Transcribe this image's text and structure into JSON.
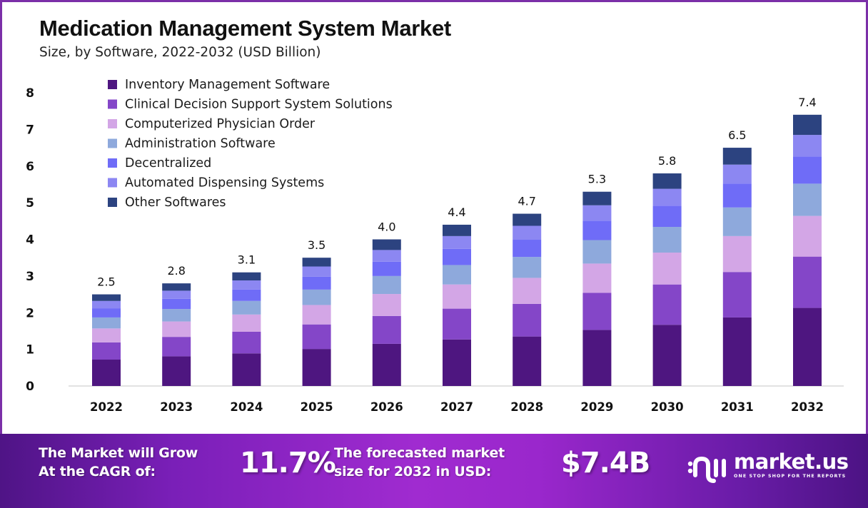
{
  "header": {
    "title": "Medication Management System Market",
    "subtitle": "Size, by Software, 2022-2032 (USD Billion)"
  },
  "chart_data": {
    "type": "bar",
    "stacked": true,
    "title": "Medication Management System Market",
    "subtitle": "Size, by Software, 2022-2032 (USD Billion)",
    "xlabel": "",
    "ylabel": "",
    "ylim": [
      0,
      8
    ],
    "yticks": [
      0,
      1,
      2,
      3,
      4,
      5,
      6,
      7,
      8
    ],
    "grid": false,
    "legend_position": "top-left",
    "categories": [
      "2022",
      "2023",
      "2024",
      "2025",
      "2026",
      "2027",
      "2028",
      "2029",
      "2030",
      "2031",
      "2032"
    ],
    "totals": [
      2.5,
      2.8,
      3.1,
      3.5,
      4.0,
      4.4,
      4.7,
      5.3,
      5.8,
      6.5,
      7.4
    ],
    "total_labels": [
      "2.5",
      "2.8",
      "3.1",
      "3.5",
      "4.0",
      "4.4",
      "4.7",
      "5.3",
      "5.8",
      "6.5",
      "7.4"
    ],
    "series": [
      {
        "name": "Inventory Management Software",
        "color": "#4e1680",
        "values": [
          0.72,
          0.81,
          0.89,
          1.01,
          1.15,
          1.27,
          1.35,
          1.53,
          1.67,
          1.87,
          2.13
        ]
      },
      {
        "name": "Clinical Decision Support System Solutions",
        "color": "#8446c8",
        "values": [
          0.47,
          0.53,
          0.59,
          0.67,
          0.76,
          0.84,
          0.89,
          1.01,
          1.1,
          1.24,
          1.4
        ]
      },
      {
        "name": "Computerized Physician Order",
        "color": "#d3a6e6",
        "values": [
          0.38,
          0.42,
          0.47,
          0.53,
          0.6,
          0.66,
          0.71,
          0.8,
          0.87,
          0.98,
          1.11
        ]
      },
      {
        "name": "Administration Software",
        "color": "#8ea9dc",
        "values": [
          0.3,
          0.34,
          0.37,
          0.42,
          0.49,
          0.53,
          0.57,
          0.64,
          0.7,
          0.78,
          0.88
        ]
      },
      {
        "name": "Decentralized",
        "color": "#6f6cf7",
        "values": [
          0.25,
          0.28,
          0.31,
          0.35,
          0.39,
          0.44,
          0.47,
          0.53,
          0.58,
          0.65,
          0.74
        ]
      },
      {
        "name": "Automated Dispensing Systems",
        "color": "#8c87f2",
        "values": [
          0.2,
          0.22,
          0.25,
          0.28,
          0.32,
          0.35,
          0.38,
          0.42,
          0.46,
          0.52,
          0.59
        ]
      },
      {
        "name": "Other Softwares",
        "color": "#2c4380",
        "values": [
          0.18,
          0.2,
          0.22,
          0.24,
          0.29,
          0.31,
          0.33,
          0.37,
          0.42,
          0.46,
          0.55
        ]
      }
    ]
  },
  "banner": {
    "cagr_text_line1": "The Market will Grow",
    "cagr_text_line2": "At the CAGR of:",
    "cagr_value": "11.7%",
    "forecast_text_line1": "The forecasted market",
    "forecast_text_line2": "size for 2032 in USD:",
    "forecast_value": "$7.4B",
    "brand_name": "market.us",
    "brand_tagline": "ONE STOP SHOP FOR THE REPORTS",
    "brand_icon": "market-us-logo-icon"
  }
}
